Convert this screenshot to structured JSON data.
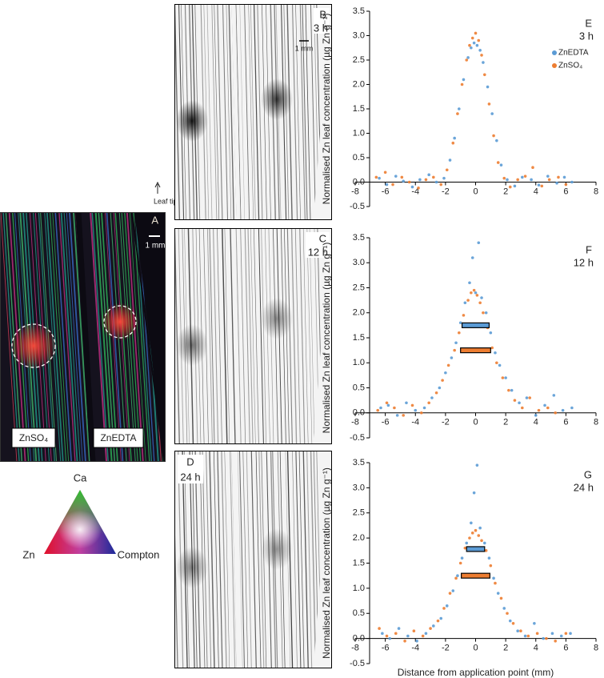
{
  "figure": {
    "panel_a": {
      "label": "A",
      "scale": "1 mm",
      "treatments": [
        "ZnSO₄",
        "ZnEDTA"
      ]
    },
    "panel_b": {
      "label": "B",
      "time": "3 h",
      "scale": "1 mm"
    },
    "panel_c": {
      "label": "C",
      "time": "12 h"
    },
    "panel_d": {
      "label": "D",
      "time": "24 h"
    },
    "leaf_tip": "Leaf tip",
    "color_key": {
      "top": "Ca",
      "left": "Zn",
      "right": "Compton"
    }
  },
  "chart_data": [
    {
      "type": "scatter",
      "panel": "E",
      "time": "3 h",
      "ylabel": "Normalised Zn leaf concentration (µg Zn g⁻¹)",
      "xlim": [
        -8,
        8
      ],
      "ylim": [
        -0.5,
        3.5
      ],
      "xticks": [
        -8,
        -6,
        -4,
        -2,
        0,
        2,
        4,
        6,
        8
      ],
      "yticks": [
        -0.5,
        {
          "value": 0,
          "label": "0.0"
        },
        0.5,
        {
          "value": 1,
          "label": "1.0"
        },
        1.5,
        {
          "value": 2,
          "label": "2.0"
        },
        2.5,
        {
          "value": 3,
          "label": "3.0"
        },
        3.5
      ],
      "legend": "upper right",
      "series": [
        {
          "name": "ZnEDTA",
          "color": "#5b9bd5",
          "x": [
            -6.4,
            -5.9,
            -5.3,
            -4.8,
            -4.2,
            -3.7,
            -3.1,
            -2.6,
            -2.1,
            -1.7,
            -1.4,
            -1.1,
            -0.8,
            -0.5,
            -0.3,
            -0.1,
            0.1,
            0.3,
            0.5,
            0.8,
            1.1,
            1.4,
            1.7,
            2.1,
            2.6,
            3.1,
            3.7,
            4.2,
            4.8,
            5.4,
            5.9,
            6.4
          ],
          "values": [
            0.08,
            -0.05,
            0.12,
            0.02,
            -0.1,
            0.05,
            0.15,
            0.0,
            0.08,
            0.45,
            0.9,
            1.5,
            2.1,
            2.55,
            2.75,
            2.85,
            2.8,
            2.7,
            2.45,
            1.95,
            1.4,
            0.85,
            0.35,
            0.05,
            -0.08,
            0.1,
            0.05,
            -0.06,
            0.12,
            -0.02,
            0.1,
            0.0
          ]
        },
        {
          "name": "ZnSO₄",
          "color": "#ed7d31",
          "x": [
            -6.6,
            -6.0,
            -5.5,
            -4.9,
            -4.4,
            -3.8,
            -3.3,
            -2.8,
            -2.3,
            -1.9,
            -1.5,
            -1.2,
            -0.9,
            -0.6,
            -0.4,
            -0.2,
            0,
            0.2,
            0.4,
            0.6,
            0.9,
            1.2,
            1.5,
            1.9,
            2.3,
            2.8,
            3.3,
            3.8,
            4.4,
            4.9,
            5.5,
            6.0
          ],
          "values": [
            0.1,
            0.2,
            -0.05,
            0.1,
            0.0,
            -0.12,
            0.05,
            0.1,
            -0.05,
            0.25,
            0.8,
            1.4,
            2.0,
            2.5,
            2.8,
            2.95,
            3.05,
            2.9,
            2.6,
            2.2,
            1.6,
            0.95,
            0.4,
            0.08,
            -0.1,
            0.05,
            0.12,
            0.3,
            -0.08,
            0.05,
            0.1,
            -0.05
          ]
        }
      ]
    },
    {
      "type": "scatter",
      "panel": "F",
      "time": "12 h",
      "ylabel": "Normalised Zn leaf concentration (µg Zn g⁻¹)",
      "xlim": [
        -8,
        8
      ],
      "ylim": [
        -0.5,
        3.5
      ],
      "xticks": [
        -8,
        -6,
        -4,
        -2,
        0,
        2,
        4,
        6,
        8
      ],
      "yticks": [
        -0.5,
        {
          "value": 0,
          "label": "0.0"
        },
        0.5,
        {
          "value": 1,
          "label": "1.0"
        },
        1.5,
        {
          "value": 2,
          "label": "2.0"
        },
        2.5,
        {
          "value": 3,
          "label": "3.0"
        },
        3.5
      ],
      "series": [
        {
          "color": "#5b9bd5",
          "x": [
            -6.3,
            -5.8,
            -5.2,
            -4.6,
            -4.0,
            -3.4,
            -2.9,
            -2.4,
            -2.0,
            -1.6,
            -1.3,
            -1.0,
            -0.7,
            -0.4,
            -0.2,
            0,
            0.2,
            0.4,
            0.7,
            1.0,
            1.3,
            1.6,
            2.0,
            2.4,
            2.9,
            3.4,
            4.0,
            4.6,
            5.2,
            5.8,
            6.4
          ],
          "values": [
            0.1,
            0.15,
            -0.05,
            0.2,
            0.05,
            0.1,
            0.3,
            0.5,
            0.8,
            1.1,
            1.4,
            1.8,
            2.2,
            2.6,
            3.1,
            2.4,
            3.4,
            2.3,
            2.0,
            1.6,
            1.2,
            0.95,
            0.7,
            0.45,
            0.2,
            0.3,
            -0.05,
            0.15,
            0.35,
            0.05,
            0.1
          ]
        },
        {
          "color": "#ed7d31",
          "x": [
            -6.5,
            -5.9,
            -5.4,
            -4.8,
            -4.2,
            -3.6,
            -3.1,
            -2.6,
            -2.2,
            -1.8,
            -1.4,
            -1.1,
            -0.8,
            -0.5,
            -0.3,
            -0.1,
            0.1,
            0.3,
            0.5,
            0.8,
            1.1,
            1.4,
            1.8,
            2.2,
            2.6,
            3.1,
            3.6,
            4.2,
            4.8,
            5.3
          ],
          "values": [
            0.05,
            0.2,
            0.1,
            -0.05,
            0.15,
            0.0,
            0.2,
            0.4,
            0.65,
            0.95,
            1.25,
            1.6,
            1.95,
            2.25,
            2.4,
            2.45,
            2.35,
            2.2,
            2.0,
            1.7,
            1.3,
            1.0,
            0.7,
            0.45,
            0.25,
            0.1,
            0.3,
            0.05,
            0.1,
            0.0
          ]
        }
      ],
      "intervals": [
        {
          "color": "#5b9bd5",
          "y": 1.75,
          "x": [
            -0.9,
            0.9
          ]
        },
        {
          "color": "#ed7d31",
          "y": 1.25,
          "x": [
            -1.0,
            1.0
          ]
        }
      ]
    },
    {
      "type": "scatter",
      "panel": "G",
      "time": "24 h",
      "ylabel": "Normalised Zn leaf concentration (µg Zn g⁻¹)",
      "xlabel": "Distance from application point (mm)",
      "xlim": [
        -8,
        8
      ],
      "ylim": [
        -0.5,
        3.5
      ],
      "xticks": [
        -8,
        -6,
        -4,
        -2,
        0,
        2,
        4,
        6,
        8
      ],
      "yticks": [
        -0.5,
        {
          "value": 0,
          "label": "0.0"
        },
        0.5,
        {
          "value": 1,
          "label": "1.0"
        },
        1.5,
        {
          "value": 2,
          "label": "2.0"
        },
        2.5,
        {
          "value": 3,
          "label": "3.0"
        },
        3.5
      ],
      "series": [
        {
          "color": "#5b9bd5",
          "x": [
            -6.2,
            -5.7,
            -5.1,
            -4.5,
            -3.9,
            -3.3,
            -2.8,
            -2.3,
            -1.9,
            -1.5,
            -1.2,
            -0.9,
            -0.6,
            -0.3,
            -0.1,
            0.1,
            0.3,
            0.6,
            0.9,
            1.2,
            1.5,
            1.9,
            2.3,
            2.8,
            3.3,
            3.9,
            4.5,
            5.1,
            5.7,
            6.3
          ],
          "values": [
            0.1,
            0.0,
            0.2,
            0.05,
            -0.05,
            0.1,
            0.25,
            0.4,
            0.65,
            0.95,
            1.25,
            1.6,
            1.9,
            2.3,
            2.9,
            3.45,
            2.2,
            1.9,
            1.6,
            1.2,
            0.9,
            0.6,
            0.35,
            0.15,
            0.05,
            0.3,
            0.0,
            0.1,
            0.05,
            0.1
          ]
        },
        {
          "color": "#ed7d31",
          "x": [
            -6.4,
            -5.9,
            -5.3,
            -4.7,
            -4.1,
            -3.5,
            -3.0,
            -2.5,
            -2.1,
            -1.7,
            -1.3,
            -1.0,
            -0.7,
            -0.4,
            -0.2,
            0,
            0.2,
            0.4,
            0.7,
            1.0,
            1.3,
            1.7,
            2.1,
            2.5,
            3.0,
            3.5,
            4.1,
            4.7,
            5.3,
            6.0
          ],
          "values": [
            0.2,
            0.05,
            0.1,
            -0.05,
            0.15,
            0.05,
            0.2,
            0.35,
            0.6,
            0.9,
            1.2,
            1.5,
            1.8,
            2.0,
            2.1,
            2.15,
            2.05,
            1.95,
            1.75,
            1.45,
            1.1,
            0.8,
            0.5,
            0.3,
            0.15,
            0.05,
            0.1,
            0.0,
            -0.05,
            0.1
          ]
        }
      ],
      "intervals": [
        {
          "color": "#5b9bd5",
          "y": 1.78,
          "x": [
            -0.6,
            0.6
          ]
        },
        {
          "color": "#ed7d31",
          "y": 1.25,
          "x": [
            -0.95,
            0.95
          ]
        }
      ]
    }
  ]
}
